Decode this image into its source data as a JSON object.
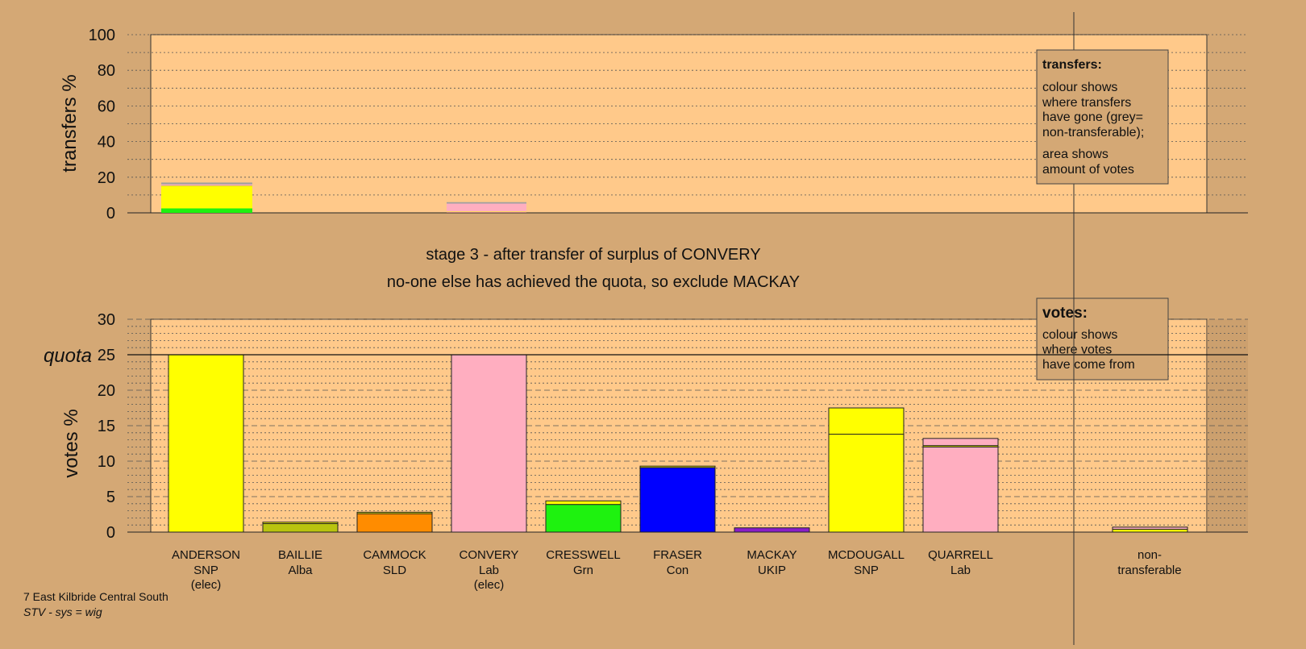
{
  "colors": {
    "background": "#d4a875",
    "plot_area": "#ffc98a",
    "yellow_snp": "#ffff00",
    "lime_alba": "#b9c40f",
    "orange_sld": "#ff8c00",
    "pink_lab": "#ffaec0",
    "green_grn": "#1ef20f",
    "blue_con": "#0000ff",
    "purple_ukip": "#8a1ec8",
    "grey_nontransferable": "#a0a0a0"
  },
  "stage_text": {
    "line1": "stage 3 - after transfer of surplus of CONVERY",
    "line2": "no-one else has achieved the quota, so exclude MACKAY"
  },
  "legend_transfers": {
    "title": "transfers:",
    "lines1": [
      "colour shows",
      "where transfers",
      "have gone (grey=",
      "non-transferable);"
    ],
    "lines2": [
      "area shows",
      "amount of votes"
    ]
  },
  "legend_votes": {
    "title": "votes:",
    "lines": [
      "colour shows",
      "where votes",
      "have come from"
    ]
  },
  "footer": {
    "line1": "7 East Kilbride Central South",
    "line2": "STV - sys = wig"
  },
  "chart_data": [
    {
      "type": "bar",
      "name": "transfers",
      "ylabel": "transfers %",
      "ylim": [
        0,
        100
      ],
      "yticks": [
        0,
        20,
        40,
        60,
        80,
        100
      ],
      "grid": true,
      "bars": [
        {
          "category": "ANDERSON",
          "segments": [
            {
              "color": "green_grn",
              "value": 2.5
            },
            {
              "color": "yellow_snp",
              "value": 12.5
            },
            {
              "color": "lime_alba",
              "value": 0.3
            },
            {
              "color": "pink_lab",
              "value": 0.7
            },
            {
              "color": "grey_nontransferable",
              "value": 1.0
            }
          ]
        },
        {
          "category": "CONVERY",
          "segments": [
            {
              "color": "purple_ukip",
              "value": 0.3
            },
            {
              "color": "yellow_snp",
              "value": 0.4
            },
            {
              "color": "pink_lab",
              "value": 4.5
            },
            {
              "color": "grey_nontransferable",
              "value": 0.8
            }
          ]
        }
      ]
    },
    {
      "type": "bar",
      "name": "votes",
      "ylabel": "votes %",
      "ylim": [
        0,
        30
      ],
      "yticks": [
        0,
        5,
        10,
        15,
        20,
        25,
        30
      ],
      "quota": 25,
      "quota_label": "quota",
      "grid": true,
      "candidates": [
        {
          "name": "ANDERSON",
          "party": "SNP",
          "note": "(elec)",
          "segments": [
            {
              "color": "yellow_snp",
              "value": 25
            }
          ]
        },
        {
          "name": "BAILLIE",
          "party": "Alba",
          "note": "",
          "segments": [
            {
              "color": "lime_alba",
              "value": 1.2
            },
            {
              "color": "yellow_snp",
              "value": 0.2
            }
          ]
        },
        {
          "name": "CAMMOCK",
          "party": "SLD",
          "note": "",
          "segments": [
            {
              "color": "orange_sld",
              "value": 2.6
            },
            {
              "color": "yellow_snp",
              "value": 0.2
            }
          ]
        },
        {
          "name": "CONVERY",
          "party": "Lab",
          "note": "(elec)",
          "segments": [
            {
              "color": "pink_lab",
              "value": 25
            }
          ]
        },
        {
          "name": "CRESSWELL",
          "party": "Grn",
          "note": "",
          "segments": [
            {
              "color": "green_grn",
              "value": 3.9
            },
            {
              "color": "yellow_snp",
              "value": 0.5
            }
          ]
        },
        {
          "name": "FRASER",
          "party": "Con",
          "note": "",
          "segments": [
            {
              "color": "blue_con",
              "value": 9.1
            },
            {
              "color": "yellow_snp",
              "value": 0.2
            }
          ]
        },
        {
          "name": "MACKAY",
          "party": "UKIP",
          "note": "",
          "segments": [
            {
              "color": "purple_ukip",
              "value": 0.6
            }
          ]
        },
        {
          "name": "MCDOUGALL",
          "party": "SNP",
          "note": "",
          "segments": [
            {
              "color": "yellow_snp",
              "value": 13.8
            },
            {
              "color": "yellow_snp",
              "value": 3.7
            }
          ]
        },
        {
          "name": "QUARRELL",
          "party": "Lab",
          "note": "",
          "segments": [
            {
              "color": "pink_lab",
              "value": 12.0
            },
            {
              "color": "yellow_snp",
              "value": 0.2
            },
            {
              "color": "pink_lab",
              "value": 1.0
            }
          ]
        }
      ],
      "nontransferable": {
        "label1": "non-",
        "label2": "transferable",
        "segments": [
          {
            "color": "yellow_snp",
            "value": 0.4
          },
          {
            "color": "pink_lab",
            "value": 0.3
          }
        ]
      }
    }
  ]
}
